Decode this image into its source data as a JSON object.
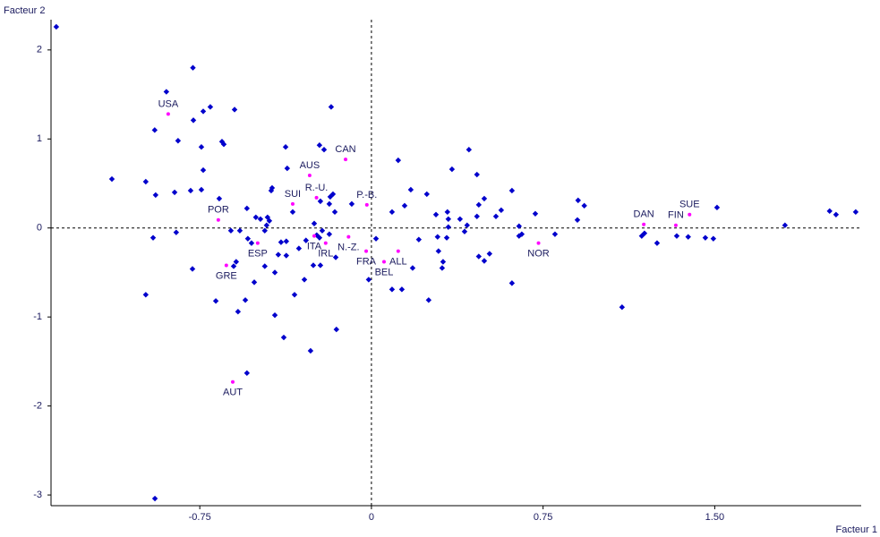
{
  "chart_data": {
    "type": "scatter",
    "x_label": "Facteur 1",
    "y_label": "Facteur 2",
    "xlim": [
      -1.4,
      2.14
    ],
    "ylim": [
      -3.12,
      2.34
    ],
    "xticks": [
      -0.75,
      0,
      0.75,
      {
        "value": 1.5,
        "label": "1.50"
      }
    ],
    "yticks": [
      -3,
      -2,
      -1,
      0,
      1,
      2
    ],
    "zero_lines": true,
    "series": [
      {
        "color": "#0000cc",
        "x": [
          -1.377,
          -0.78,
          -0.896,
          -0.947,
          -0.845,
          -0.778,
          -0.735,
          -0.704,
          -0.598,
          -0.176,
          -0.743,
          -0.653,
          -0.645,
          -0.735,
          -1.134,
          -0.986,
          -0.943,
          -0.86,
          -0.79,
          -0.743,
          -0.665,
          -0.853,
          -0.954,
          -0.782,
          -0.986,
          -0.946,
          -0.375,
          -0.368,
          -0.227,
          -0.207,
          -0.438,
          -0.434,
          -0.344,
          -0.223,
          -0.18,
          -0.184,
          -0.168,
          -0.16,
          -0.086,
          -0.544,
          -0.614,
          -0.575,
          -0.505,
          -0.485,
          -0.454,
          -0.446,
          -0.458,
          -0.54,
          -0.466,
          -0.524,
          -0.395,
          -0.372,
          -0.317,
          -0.286,
          -0.239,
          -0.227,
          -0.215,
          -0.25,
          -0.184,
          -0.591,
          -0.602,
          -0.466,
          -0.407,
          -0.372,
          -0.422,
          -0.512,
          -0.254,
          -0.223,
          -0.156,
          -0.293,
          -0.336,
          -0.68,
          -0.551,
          -0.583,
          -0.422,
          -0.383,
          -0.266,
          -0.153,
          -0.544,
          -0.012,
          0.09,
          0.133,
          0.18,
          0.02,
          0.09,
          0.145,
          0.172,
          0.117,
          0.242,
          0.282,
          0.207,
          0.289,
          0.293,
          0.309,
          0.313,
          0.25,
          0.352,
          0.332,
          0.336,
          0.336,
          0.329,
          0.387,
          0.418,
          0.426,
          0.461,
          0.469,
          0.461,
          0.493,
          0.407,
          0.469,
          0.493,
          0.516,
          0.544,
          0.567,
          0.614,
          0.645,
          0.657,
          0.645,
          0.614,
          0.716,
          0.802,
          0.903,
          0.93,
          0.9,
          1.095,
          1.181,
          1.193,
          1.248,
          1.334,
          1.384,
          1.459,
          1.494,
          1.51,
          1.807,
          2.002,
          2.03,
          2.116
        ],
        "y": [
          2.26,
          1.8,
          1.53,
          1.1,
          0.98,
          1.21,
          1.31,
          1.36,
          1.33,
          1.36,
          0.91,
          0.97,
          0.94,
          0.65,
          0.55,
          0.52,
          0.37,
          0.4,
          0.42,
          0.43,
          0.33,
          -0.05,
          -0.11,
          -0.46,
          -0.75,
          -3.04,
          0.91,
          0.67,
          0.93,
          0.88,
          0.42,
          0.45,
          0.18,
          0.3,
          0.35,
          0.27,
          0.38,
          0.18,
          0.27,
          0.22,
          -0.03,
          -0.03,
          0.12,
          0.1,
          0.12,
          0.08,
          0.03,
          -0.12,
          -0.03,
          -0.17,
          -0.16,
          -0.15,
          -0.23,
          -0.14,
          -0.08,
          -0.11,
          -0.03,
          0.05,
          -0.07,
          -0.38,
          -0.43,
          -0.43,
          -0.3,
          -0.31,
          -0.5,
          -0.61,
          -0.42,
          -0.42,
          -0.33,
          -0.58,
          -0.75,
          -0.82,
          -0.81,
          -0.94,
          -0.98,
          -1.23,
          -1.38,
          -1.14,
          -1.63,
          -0.58,
          -0.69,
          -0.69,
          -0.45,
          -0.12,
          0.18,
          0.25,
          0.43,
          0.76,
          0.38,
          0.15,
          -0.13,
          -0.1,
          -0.26,
          -0.45,
          -0.38,
          -0.81,
          0.66,
          0.18,
          0.1,
          0.01,
          -0.11,
          0.1,
          0.03,
          0.88,
          0.6,
          0.26,
          0.13,
          0.33,
          -0.04,
          -0.32,
          -0.37,
          -0.29,
          0.13,
          0.2,
          0.42,
          0.02,
          -0.07,
          -0.09,
          -0.62,
          0.16,
          -0.07,
          0.31,
          0.25,
          0.09,
          -0.89,
          -0.09,
          -0.06,
          -0.17,
          -0.09,
          -0.1,
          -0.11,
          -0.12,
          0.23,
          0.03,
          0.19,
          0.15,
          0.18
        ]
      },
      {
        "color": "#ff00ff",
        "labels": [
          "USA",
          "CAN",
          "AUS",
          "R.-U.",
          "SUI",
          "P.-B.",
          "POR",
          "DAN",
          "FIN",
          "SUE",
          "ITA",
          "ESP",
          "IRL",
          "N.-Z.",
          "NOR",
          "FRA",
          "ALL",
          "BEL",
          "GRE",
          "AUT"
        ],
        "x": [
          -0.888,
          -0.113,
          -0.27,
          -0.24,
          -0.344,
          -0.02,
          -0.669,
          1.19,
          1.33,
          1.39,
          -0.25,
          -0.497,
          -0.2,
          -0.1,
          0.73,
          -0.023,
          0.117,
          0.055,
          -0.634,
          -0.606
        ],
        "y": [
          1.28,
          0.77,
          0.59,
          0.34,
          0.27,
          0.26,
          0.09,
          0.04,
          0.03,
          0.15,
          -0.09,
          -0.17,
          -0.17,
          -0.1,
          -0.17,
          -0.26,
          -0.26,
          -0.38,
          -0.42,
          -1.73
        ]
      }
    ]
  }
}
